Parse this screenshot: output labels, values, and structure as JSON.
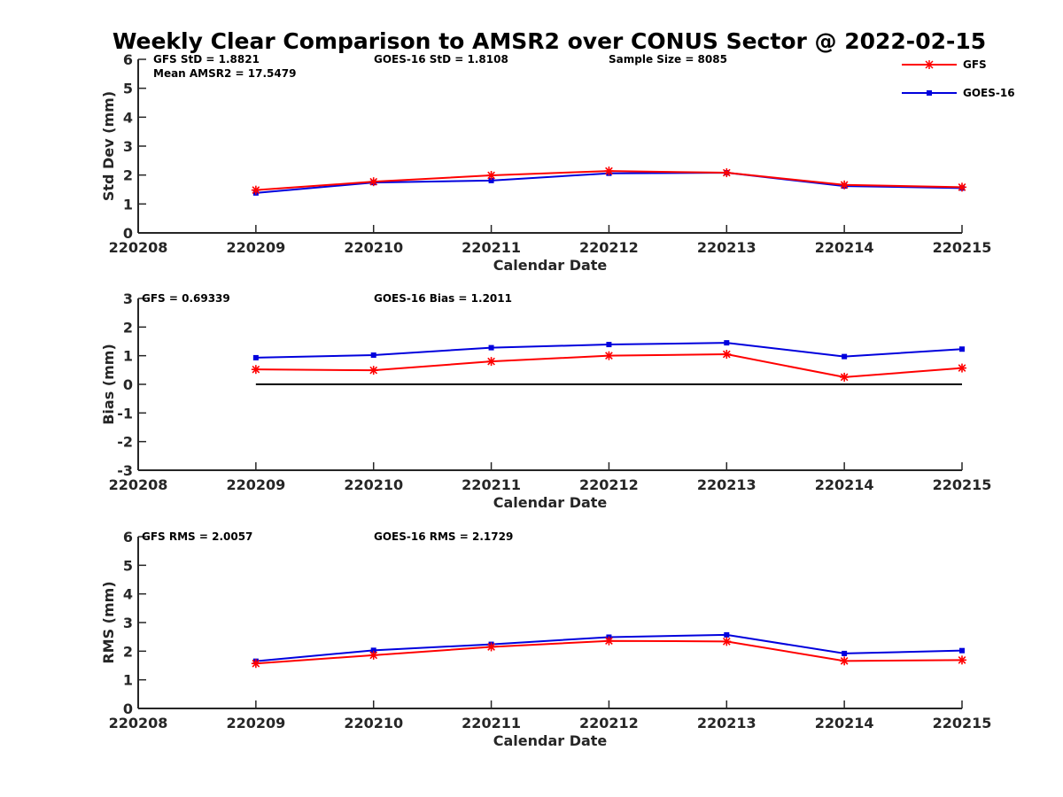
{
  "figure": {
    "title": "Weekly Clear Comparison to AMSR2 over CONUS Sector @ 2022-02-15"
  },
  "colors": {
    "GFS": "#ff0000",
    "GOES-16": "#0000dd",
    "axis": "#262626",
    "zero_line": "#000000"
  },
  "legend": {
    "placement": "top-right",
    "entries": [
      {
        "name": "GFS",
        "marker": "asterisk"
      },
      {
        "name": "GOES-16",
        "marker": "square"
      }
    ]
  },
  "chart_data": [
    {
      "type": "line",
      "id": "std",
      "xlabel": "Calendar Date",
      "ylabel": "Std Dev (mm)",
      "x_ticks": [
        "220208",
        "220209",
        "220210",
        "220211",
        "220212",
        "220213",
        "220214",
        "220215"
      ],
      "ylim": [
        0,
        6
      ],
      "yticks": [
        0,
        1,
        2,
        3,
        4,
        5,
        6
      ],
      "grid": false,
      "x": [
        "220209",
        "220210",
        "220211",
        "220212",
        "220213",
        "220214",
        "220215"
      ],
      "series": [
        {
          "name": "GFS",
          "values": [
            1.48,
            1.77,
            1.99,
            2.14,
            2.08,
            1.66,
            1.58
          ]
        },
        {
          "name": "GOES-16",
          "values": [
            1.38,
            1.74,
            1.81,
            2.06,
            2.08,
            1.62,
            1.55
          ]
        }
      ],
      "annotations": [
        "GFS StD = 1.8821",
        "GOES-16 StD = 1.8108",
        "Sample Size = 8085",
        "Mean AMSR2 = 17.5479"
      ]
    },
    {
      "type": "line",
      "id": "bias",
      "xlabel": "Calendar Date",
      "ylabel": "Bias (mm)",
      "x_ticks": [
        "220208",
        "220209",
        "220210",
        "220211",
        "220212",
        "220213",
        "220214",
        "220215"
      ],
      "ylim": [
        -3,
        3
      ],
      "yticks": [
        -3,
        -2,
        -1,
        0,
        1,
        2,
        3
      ],
      "grid": false,
      "zero_line": true,
      "x": [
        "220209",
        "220210",
        "220211",
        "220212",
        "220213",
        "220214",
        "220215"
      ],
      "series": [
        {
          "name": "GFS",
          "values": [
            0.52,
            0.49,
            0.8,
            1.0,
            1.05,
            0.25,
            0.57
          ]
        },
        {
          "name": "GOES-16",
          "values": [
            0.93,
            1.02,
            1.28,
            1.39,
            1.45,
            0.97,
            1.23
          ]
        }
      ],
      "annotations": [
        "GFS = 0.69339",
        "GOES-16 Bias  = 1.2011"
      ]
    },
    {
      "type": "line",
      "id": "rms",
      "xlabel": "Calendar Date",
      "ylabel": "RMS (mm)",
      "x_ticks": [
        "220208",
        "220209",
        "220210",
        "220211",
        "220212",
        "220213",
        "220214",
        "220215"
      ],
      "ylim": [
        0,
        6
      ],
      "yticks": [
        0,
        1,
        2,
        3,
        4,
        5,
        6
      ],
      "grid": false,
      "x": [
        "220209",
        "220210",
        "220211",
        "220212",
        "220213",
        "220214",
        "220215"
      ],
      "series": [
        {
          "name": "GFS",
          "values": [
            1.57,
            1.86,
            2.15,
            2.36,
            2.34,
            1.66,
            1.69
          ]
        },
        {
          "name": "GOES-16",
          "values": [
            1.65,
            2.03,
            2.24,
            2.49,
            2.57,
            1.92,
            2.02
          ]
        }
      ],
      "annotations": [
        "GFS RMS = 2.0057",
        "GOES-16 RMS = 2.1729"
      ]
    }
  ]
}
